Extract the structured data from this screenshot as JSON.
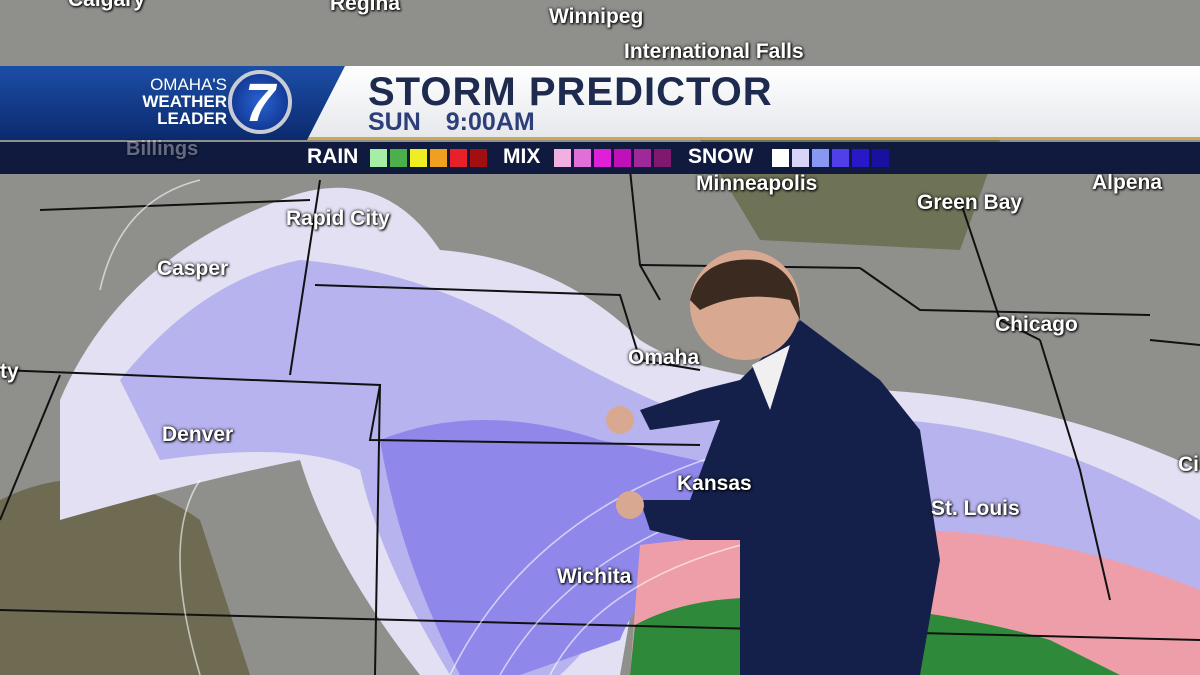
{
  "header": {
    "station_line1": "OMAHA'S",
    "station_line2": "WEATHER",
    "station_line3": "LEADER",
    "channel": "7",
    "title": "STORM PREDICTOR",
    "subtitle": "SUN 9:00AM"
  },
  "legend": {
    "rain": {
      "label": "RAIN",
      "colors": [
        "#a6eea6",
        "#4bb04b",
        "#eeee22",
        "#f0a020",
        "#e8202a",
        "#a01010"
      ]
    },
    "mix": {
      "label": "MIX",
      "colors": [
        "#f0b0e0",
        "#e070d8",
        "#e020d8",
        "#c010b8",
        "#a02898",
        "#801870"
      ]
    },
    "snow": {
      "label": "SNOW",
      "colors": [
        "#ffffff",
        "#d8d4f8",
        "#8898f0",
        "#5040e8",
        "#2818c8",
        "#1a10a0"
      ]
    }
  },
  "cities": [
    {
      "name": "Calgary"
    },
    {
      "name": "Regina"
    },
    {
      "name": "Winnipeg"
    },
    {
      "name": "International Falls"
    },
    {
      "name": "Billings"
    },
    {
      "name": "Minneapolis"
    },
    {
      "name": "Green Bay"
    },
    {
      "name": "Alpena"
    },
    {
      "name": "Rapid City"
    },
    {
      "name": "Casper"
    },
    {
      "name": "Omaha"
    },
    {
      "name": "Chicago"
    },
    {
      "name": "ty"
    },
    {
      "name": "Denver"
    },
    {
      "name": "Kansas"
    },
    {
      "name": "St. Louis"
    },
    {
      "name": "Wichita"
    },
    {
      "name": "Ci"
    }
  ]
}
